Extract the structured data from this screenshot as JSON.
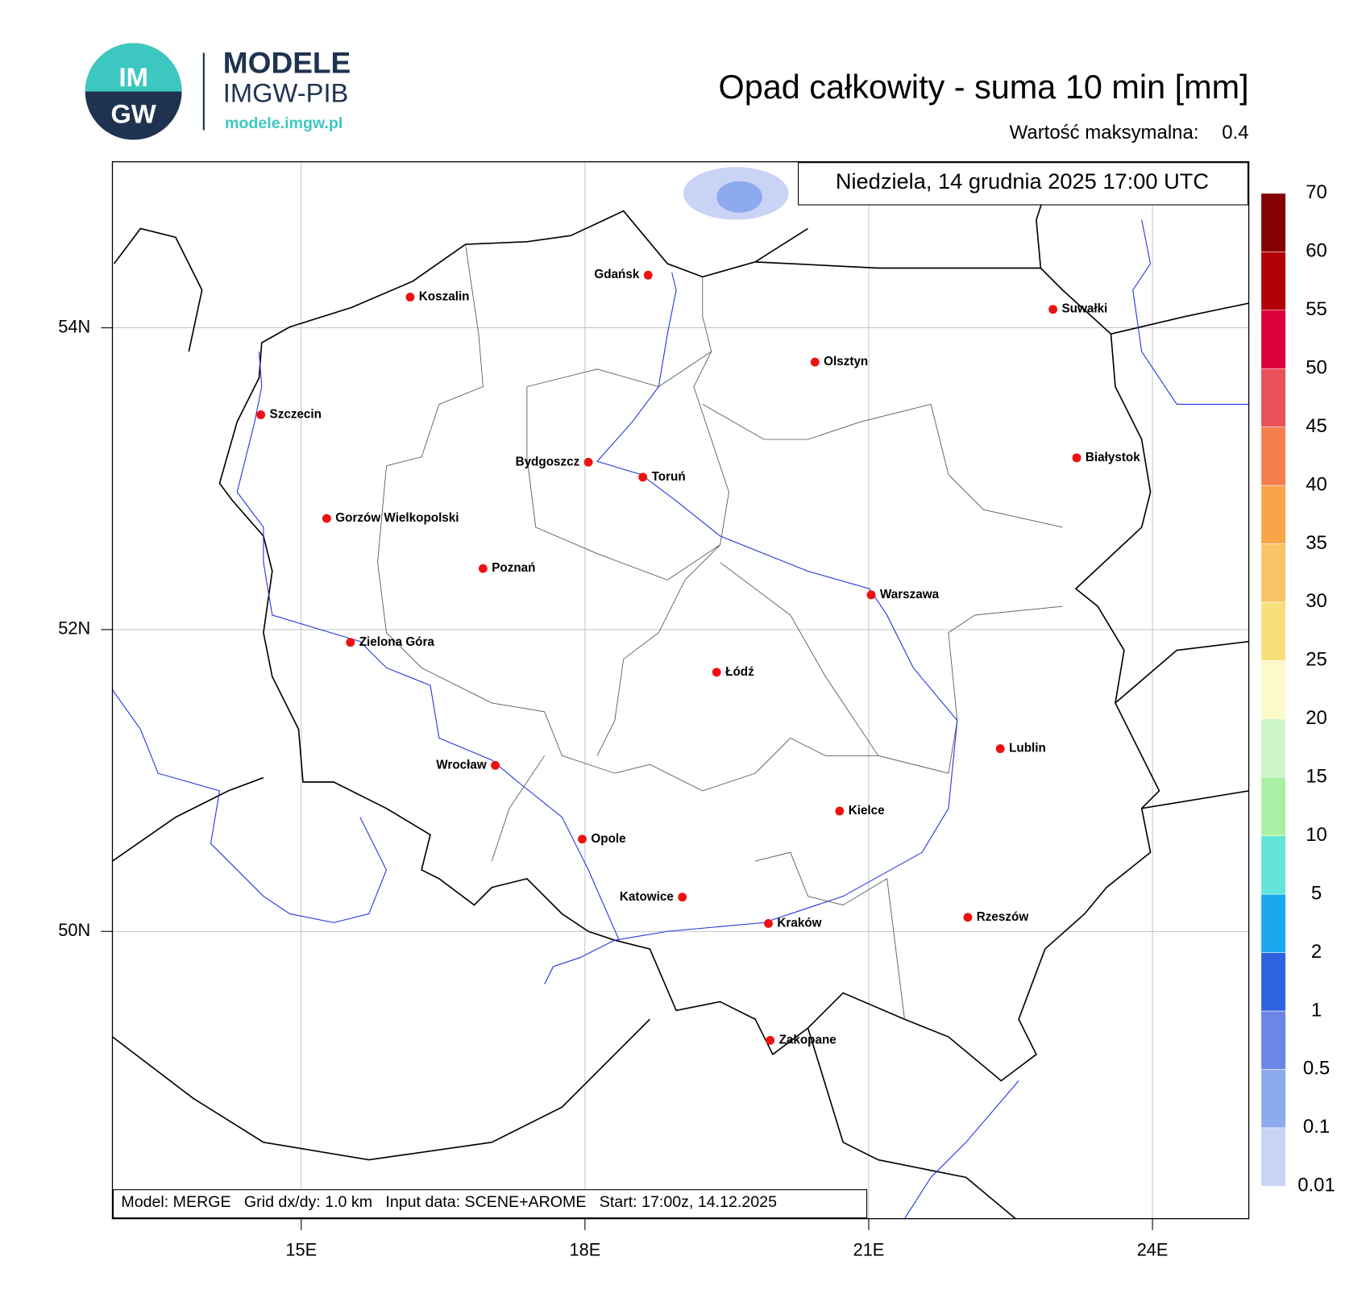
{
  "header": {
    "logo_top": "IM",
    "logo_bottom": "GW",
    "brand": "MODELE",
    "brand_sub": "IMGW-PIB",
    "url": "modele.imgw.pl"
  },
  "map": {
    "title": "Opad całkowity - suma 10 min [mm]",
    "max_label": "Wartość maksymalna:",
    "max_value": 0.4,
    "date": "Niedziela, 14 grudnia 2025 17:00 UTC",
    "xticks": [
      {
        "value": 15,
        "label": "15E"
      },
      {
        "value": 18,
        "label": "18E"
      },
      {
        "value": 21,
        "label": "21E"
      },
      {
        "value": 24,
        "label": "24E"
      }
    ],
    "yticks": [
      {
        "value": 54,
        "label": "54N"
      },
      {
        "value": 52,
        "label": "52N"
      },
      {
        "value": 50,
        "label": "50N"
      }
    ],
    "footer": "Model: MERGE   Grid dx/dy: 1.0 km   Input data: SCENE+AROME   Start: 17:00z, 14.12.2025",
    "cities": [
      "Gdańsk",
      "Koszalin",
      "Suwałki",
      "Olsztyn",
      "Szczecin",
      "Białystok",
      "Bydgoszcz",
      "Toruń",
      "Gorzów Wielkopolski",
      "Poznań",
      "Warszawa",
      "Zielona Góra",
      "Łódź",
      "Lublin",
      "Wrocław",
      "Kielce",
      "Opole",
      "Katowice",
      "Kraków",
      "Rzeszów",
      "Zakopane"
    ]
  },
  "legend": {
    "levels": [
      0.01,
      0.1,
      0.5,
      1,
      2,
      5,
      10,
      15,
      20,
      25,
      30,
      35,
      40,
      45,
      50,
      55,
      60,
      70
    ],
    "colors": [
      "#c9d3f6",
      "#8eaaee",
      "#6b86e6",
      "#2f62e0",
      "#1aa8ee",
      "#63e4d8",
      "#a9f0a3",
      "#cdf6cb",
      "#fcfac8",
      "#f7df7b",
      "#f9c466",
      "#f9a547",
      "#f57d4e",
      "#e8505a",
      "#de003c",
      "#b30007",
      "#850000"
    ]
  }
}
